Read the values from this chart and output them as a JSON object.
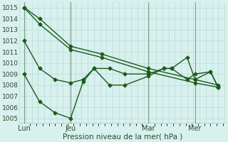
{
  "xlabel": "Pression niveau de la mer( hPa )",
  "background_color": "#d8f0ee",
  "grid_color": "#b8dcd8",
  "line_color": "#1a5c1a",
  "ylim": [
    1004.5,
    1015.5
  ],
  "yticks": [
    1005,
    1006,
    1007,
    1008,
    1009,
    1010,
    1011,
    1012,
    1013,
    1014,
    1015
  ],
  "xtick_labels": [
    "Lun",
    "Jeu",
    "Mar",
    "Mer"
  ],
  "xtick_positions": [
    0,
    30,
    80,
    110
  ],
  "xlim": [
    -3,
    130
  ],
  "vlines": [
    0,
    30,
    80,
    110
  ],
  "series": [
    {
      "x": [
        0,
        10,
        30,
        50,
        80,
        110,
        125
      ],
      "y": [
        1015,
        1014,
        1011.5,
        1010.8,
        1009.5,
        1008.5,
        1008.0
      ],
      "marker": "D",
      "markersize": 2.5,
      "lw": 1.0
    },
    {
      "x": [
        0,
        10,
        30,
        50,
        80,
        110,
        125
      ],
      "y": [
        1015,
        1013.5,
        1011.2,
        1010.5,
        1009.2,
        1008.2,
        1007.8
      ],
      "marker": "D",
      "markersize": 2.5,
      "lw": 1.0
    },
    {
      "x": [
        0,
        10,
        20,
        30,
        38,
        45,
        55,
        65,
        80,
        90,
        95,
        105,
        110,
        120,
        125
      ],
      "y": [
        1009,
        1006.5,
        1005.5,
        1005,
        1008.3,
        1009.5,
        1009.5,
        1009.0,
        1009.0,
        1009.5,
        1009.5,
        1008.5,
        1009.0,
        1009.2,
        1007.8
      ],
      "marker": "D",
      "markersize": 2.5,
      "lw": 1.0
    },
    {
      "x": [
        0,
        10,
        20,
        30,
        38,
        45,
        55,
        65,
        80,
        90,
        95,
        105,
        110,
        120,
        125
      ],
      "y": [
        1012,
        1009.5,
        1008.5,
        1008.2,
        1008.5,
        1009.5,
        1008.0,
        1008.0,
        1008.8,
        1009.5,
        1009.5,
        1010.5,
        1008.5,
        1009.2,
        1007.8
      ],
      "marker": "D",
      "markersize": 2.5,
      "lw": 1.0
    }
  ]
}
